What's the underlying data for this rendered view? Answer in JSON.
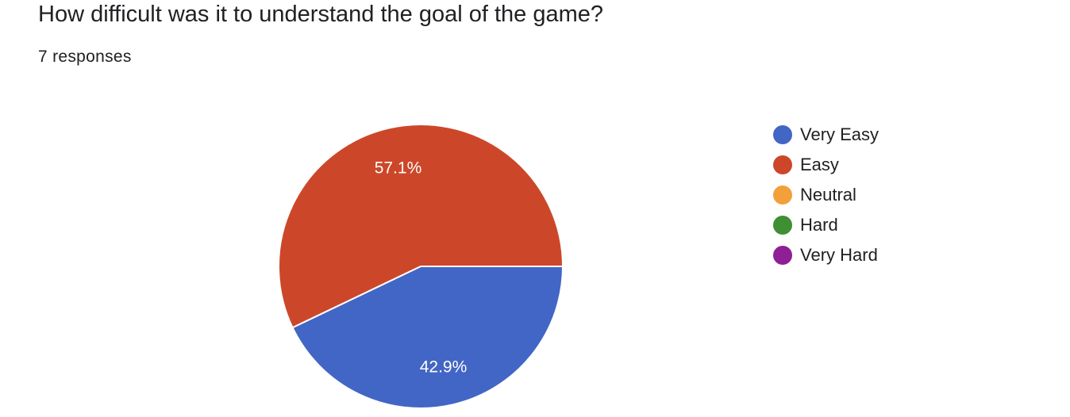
{
  "question": {
    "title": "How difficult was it to understand the goal of the game?",
    "responses": "7 responses"
  },
  "chart_data": {
    "type": "pie",
    "title": "How difficult was it to understand the goal of the game?",
    "categories": [
      "Very Easy",
      "Easy",
      "Neutral",
      "Hard",
      "Very Hard"
    ],
    "values": [
      42.9,
      57.1,
      0,
      0,
      0
    ],
    "value_labels": [
      "42.9%",
      "57.1%",
      "",
      "",
      ""
    ],
    "colors": [
      "#4266c5",
      "#cc4729",
      "#f2a03a",
      "#3f8f35",
      "#8e1f94"
    ],
    "legend_position": "right"
  }
}
